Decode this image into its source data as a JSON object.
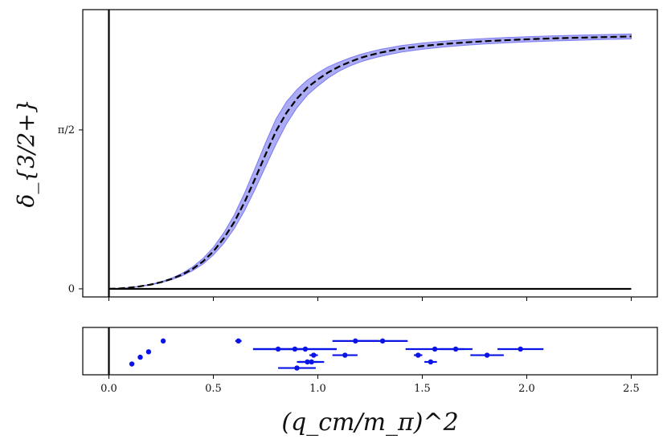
{
  "chart_data": [
    {
      "panel": "top",
      "type": "line",
      "ylabel": "δ_{3/2+}",
      "xlim": [
        -0.125,
        2.625
      ],
      "ylim": [
        -0.08,
        2.76
      ],
      "yticks": [
        {
          "value": 0,
          "label": "0"
        },
        {
          "value": 1.5708,
          "label": "π/2"
        }
      ],
      "xticks": [
        0.0,
        0.5,
        1.0,
        1.5,
        2.0,
        2.5
      ],
      "reference_lines": {
        "horizontal_y": 0,
        "horizontal_x_range": [
          0,
          2.5
        ],
        "vertical_x": 0
      },
      "series": [
        {
          "name": "central",
          "style": "dashed",
          "color": "#000000",
          "x": [
            0.0,
            0.05,
            0.1,
            0.15,
            0.2,
            0.25,
            0.3,
            0.35,
            0.4,
            0.45,
            0.5,
            0.55,
            0.6,
            0.65,
            0.7,
            0.75,
            0.8,
            0.85,
            0.9,
            0.95,
            1.0,
            1.05,
            1.1,
            1.15,
            1.2,
            1.25,
            1.3,
            1.35,
            1.4,
            1.5,
            1.6,
            1.7,
            1.8,
            1.9,
            2.0,
            2.1,
            2.2,
            2.3,
            2.4,
            2.5
          ],
          "y": [
            0.0,
            0.004,
            0.012,
            0.025,
            0.042,
            0.066,
            0.098,
            0.14,
            0.196,
            0.27,
            0.37,
            0.5,
            0.66,
            0.86,
            1.09,
            1.33,
            1.56,
            1.74,
            1.88,
            1.99,
            2.07,
            2.14,
            2.195,
            2.24,
            2.28,
            2.31,
            2.335,
            2.355,
            2.375,
            2.4,
            2.42,
            2.435,
            2.448,
            2.458,
            2.467,
            2.474,
            2.48,
            2.485,
            2.49,
            2.495
          ]
        }
      ],
      "bands": [
        {
          "name": "uncertainty",
          "color": "#6666ee",
          "x": [
            0.0,
            0.05,
            0.1,
            0.15,
            0.2,
            0.25,
            0.3,
            0.35,
            0.4,
            0.45,
            0.5,
            0.55,
            0.6,
            0.65,
            0.7,
            0.75,
            0.8,
            0.85,
            0.9,
            0.95,
            1.0,
            1.05,
            1.1,
            1.15,
            1.2,
            1.25,
            1.3,
            1.35,
            1.4,
            1.5,
            1.6,
            1.7,
            1.8,
            1.9,
            2.0,
            2.1,
            2.2,
            2.3,
            2.4,
            2.5
          ],
          "lower": [
            0.0,
            0.003,
            0.011,
            0.023,
            0.039,
            0.061,
            0.09,
            0.128,
            0.178,
            0.244,
            0.334,
            0.45,
            0.595,
            0.775,
            0.985,
            1.21,
            1.43,
            1.63,
            1.79,
            1.915,
            2.005,
            2.085,
            2.15,
            2.2,
            2.24,
            2.272,
            2.298,
            2.32,
            2.34,
            2.368,
            2.39,
            2.407,
            2.421,
            2.432,
            2.441,
            2.449,
            2.455,
            2.461,
            2.466,
            2.47
          ],
          "upper": [
            0.0,
            0.005,
            0.013,
            0.027,
            0.045,
            0.071,
            0.106,
            0.153,
            0.216,
            0.3,
            0.41,
            0.555,
            0.73,
            0.95,
            1.195,
            1.445,
            1.68,
            1.85,
            1.97,
            2.065,
            2.135,
            2.195,
            2.24,
            2.28,
            2.315,
            2.343,
            2.367,
            2.386,
            2.405,
            2.43,
            2.448,
            2.462,
            2.474,
            2.484,
            2.492,
            2.499,
            2.505,
            2.51,
            2.515,
            2.52
          ]
        }
      ]
    },
    {
      "panel": "bottom",
      "type": "scatter",
      "xlabel": "(q_cm/m_π)^2",
      "xticks": [
        {
          "value": 0.0,
          "label": "0.0"
        },
        {
          "value": 0.5,
          "label": "0.5"
        },
        {
          "value": 1.0,
          "label": "1.0"
        },
        {
          "value": 1.5,
          "label": "1.5"
        },
        {
          "value": 2.0,
          "label": "2.0"
        },
        {
          "value": 2.5,
          "label": "2.5"
        }
      ],
      "xlim": [
        -0.125,
        2.625
      ],
      "ylim": [
        0,
        7
      ],
      "color": "#0a14e6",
      "points": [
        {
          "x": 0.26,
          "xerr": 0.0,
          "row": 5
        },
        {
          "x": 0.19,
          "xerr": 0.0,
          "row": 3.4
        },
        {
          "x": 0.15,
          "xerr": 0.0,
          "row": 2.6
        },
        {
          "x": 0.11,
          "xerr": 0.0,
          "row": 1.6
        },
        {
          "x": 0.62,
          "xerr": 0.015,
          "row": 5
        },
        {
          "x": 1.18,
          "xerr": 0.11,
          "row": 5
        },
        {
          "x": 1.31,
          "xerr": 0.12,
          "row": 5
        },
        {
          "x": 0.81,
          "xerr": 0.12,
          "row": 3.8
        },
        {
          "x": 0.89,
          "xerr": 0.2,
          "row": 3.8
        },
        {
          "x": 0.94,
          "xerr": 0.15,
          "row": 3.8
        },
        {
          "x": 1.56,
          "xerr": 0.14,
          "row": 3.8
        },
        {
          "x": 1.66,
          "xerr": 0.08,
          "row": 3.8
        },
        {
          "x": 1.97,
          "xerr": 0.11,
          "row": 3.8
        },
        {
          "x": 0.98,
          "xerr": 0.02,
          "row": 2.9
        },
        {
          "x": 1.13,
          "xerr": 0.06,
          "row": 2.9
        },
        {
          "x": 1.48,
          "xerr": 0.02,
          "row": 2.9
        },
        {
          "x": 1.81,
          "xerr": 0.08,
          "row": 2.9
        },
        {
          "x": 0.95,
          "xerr": 0.05,
          "row": 1.9
        },
        {
          "x": 0.97,
          "xerr": 0.06,
          "row": 1.9
        },
        {
          "x": 1.54,
          "xerr": 0.03,
          "row": 1.9
        },
        {
          "x": 0.9,
          "xerr": 0.09,
          "row": 1.0
        }
      ]
    }
  ]
}
